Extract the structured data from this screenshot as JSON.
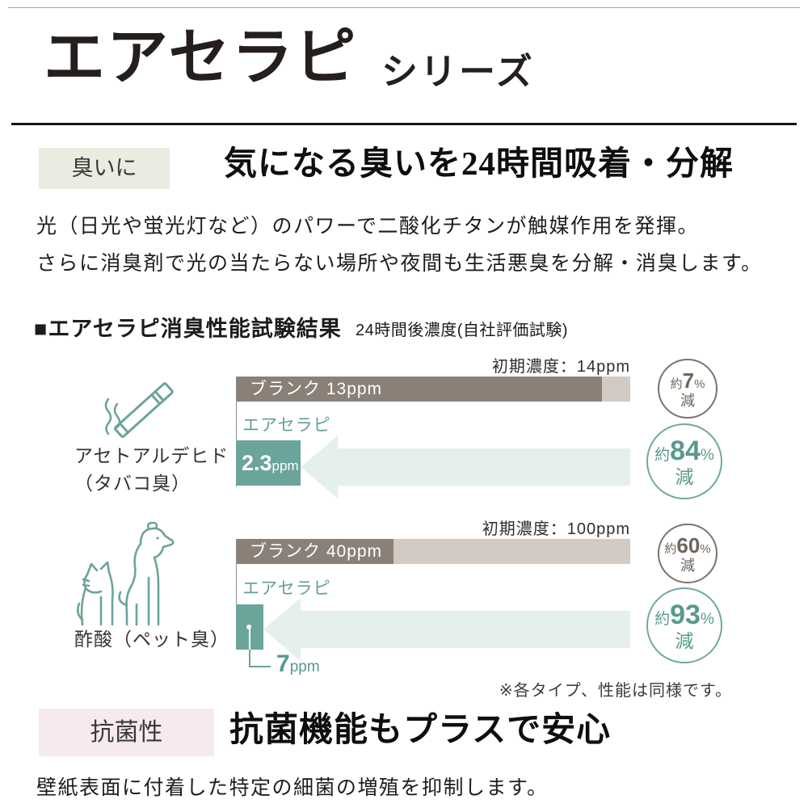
{
  "header": {
    "title": "エアセラピ",
    "series": "シリーズ"
  },
  "odor_section": {
    "tag": "臭いに",
    "heading": "気になる臭いを24時間吸着・分解",
    "body_lines": [
      "光（日光や蛍光灯など）のパワーで二酸化チタンが触媒作用を発揮。",
      "さらに消臭剤で光の当たらない場所や夜間も生活悪臭を分解・消臭します。"
    ]
  },
  "chart_data": {
    "type": "bar",
    "bullet": "■",
    "title": "エアセラピ消臭性能試験結果",
    "subtitle": "24時間後濃度(自社評価試験)",
    "note": "※各タイプ、性能は同様です。",
    "unit": "ppm",
    "legend": {
      "blank": "ブランク",
      "product": "エアセラピ"
    },
    "groups": [
      {
        "label_lines": [
          "アセトアルデヒド",
          "（タバコ臭）"
        ],
        "icon": "cigarette-icon",
        "initial_ppm": 14,
        "initial_label": "初期濃度：14ppm",
        "blank": {
          "name": "ブランク",
          "ppm": 13,
          "bar_label": "ブランク 13ppm",
          "reduction": {
            "prefix": "約",
            "value": "7",
            "percent": "%",
            "suffix": "減"
          }
        },
        "product": {
          "name": "エアセラピ",
          "ppm": 2.3,
          "value_text": "2.3",
          "unit_text": "ppm",
          "reduction": {
            "prefix": "約",
            "value": "84",
            "percent": "%",
            "suffix": "減"
          }
        }
      },
      {
        "label_lines": [
          "酢酸（ペット臭）"
        ],
        "icon": "dog-and-cat-icon",
        "initial_ppm": 100,
        "initial_label": "初期濃度：100ppm",
        "blank": {
          "name": "ブランク",
          "ppm": 40,
          "bar_label": "ブランク 40ppm",
          "reduction": {
            "prefix": "約",
            "value": "60",
            "percent": "%",
            "suffix": "減"
          }
        },
        "product": {
          "name": "エアセラピ",
          "ppm": 7,
          "value_text": "7",
          "unit_text": "ppm",
          "reduction": {
            "prefix": "約",
            "value": "93",
            "percent": "%",
            "suffix": "減"
          }
        }
      }
    ]
  },
  "antibacterial_section": {
    "tag": "抗菌性",
    "heading": "抗菌機能もプラスで安心",
    "body": "壁紙表面に付着した特定の細菌の増殖を抑制します。"
  },
  "colors": {
    "teal": "#6BA49B",
    "teal_text": "#58998F",
    "arrow_light_teal": "#E5EFED",
    "blank_bar_dark": "#8A8078",
    "blank_bar_light": "#D2CAC3",
    "odor_tag_bg": "#E9ECE0",
    "antibacterial_tag_bg": "#F6EAEF",
    "circle_brown": "#7C7369",
    "text_dark": "#222222"
  }
}
